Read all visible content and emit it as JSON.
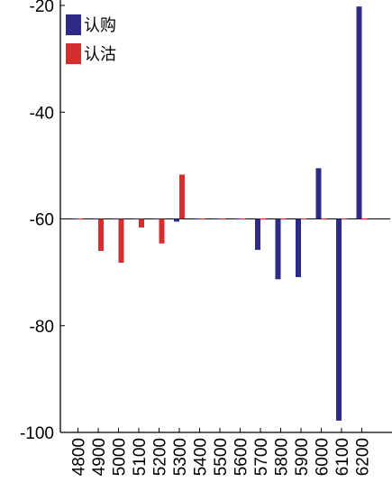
{
  "chart_data": {
    "type": "bar",
    "title": "",
    "xlabel": "",
    "ylabel": "",
    "ylim": [
      -100,
      -20
    ],
    "baseline": -60,
    "yticks": [
      -100,
      -80,
      -60,
      -40,
      -20
    ],
    "categories": [
      "4800",
      "4900",
      "5000",
      "5100",
      "5200",
      "5300",
      "5400",
      "5500",
      "5600",
      "5700",
      "5800",
      "5900",
      "6000",
      "6100",
      "6200"
    ],
    "legend_position": "top-left",
    "grid": false,
    "series": [
      {
        "name": "认购",
        "color": "#2e2a85",
        "values": [
          -60,
          -60,
          -60,
          -60,
          -60,
          -60.5,
          -60,
          -60,
          -60,
          -65.8,
          -71.3,
          -70.9,
          -50.5,
          -97.8,
          -20.2
        ]
      },
      {
        "name": "认沽",
        "color": "#d32f2f",
        "values": [
          -60,
          -66,
          -68.2,
          -61.6,
          -64.6,
          -51.7,
          -60,
          -60,
          -60,
          -60,
          -60,
          -60,
          -60,
          -60,
          -60
        ]
      }
    ]
  }
}
